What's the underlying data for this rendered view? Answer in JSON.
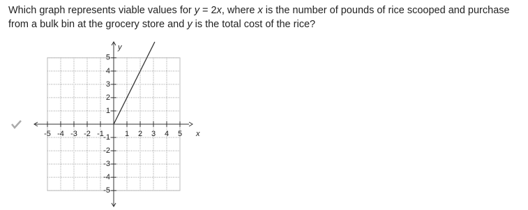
{
  "question": [
    "Which graph represents viable values for ",
    "y",
    " = 2",
    "x",
    ", where ",
    "x",
    " is the number of pounds of rice scooped and purchase from a bulk bin at the grocery store and ",
    "y",
    " is the total cost of the rice?"
  ],
  "chart_data": {
    "type": "line",
    "x_label": "x",
    "y_label": "y",
    "x": [
      0,
      3.1
    ],
    "series": [
      {
        "color": "#333",
        "values": [
          0,
          6.2
        ]
      }
    ],
    "xlim": [
      -6,
      6
    ],
    "ylim": [
      -6.2,
      6.2
    ],
    "xticks": [
      -5,
      -4,
      -3,
      -2,
      -1,
      1,
      2,
      3,
      4,
      5
    ],
    "yticks": [
      -5,
      -4,
      -3,
      -2,
      -1,
      1,
      2,
      3,
      4,
      5
    ],
    "grid": true
  }
}
